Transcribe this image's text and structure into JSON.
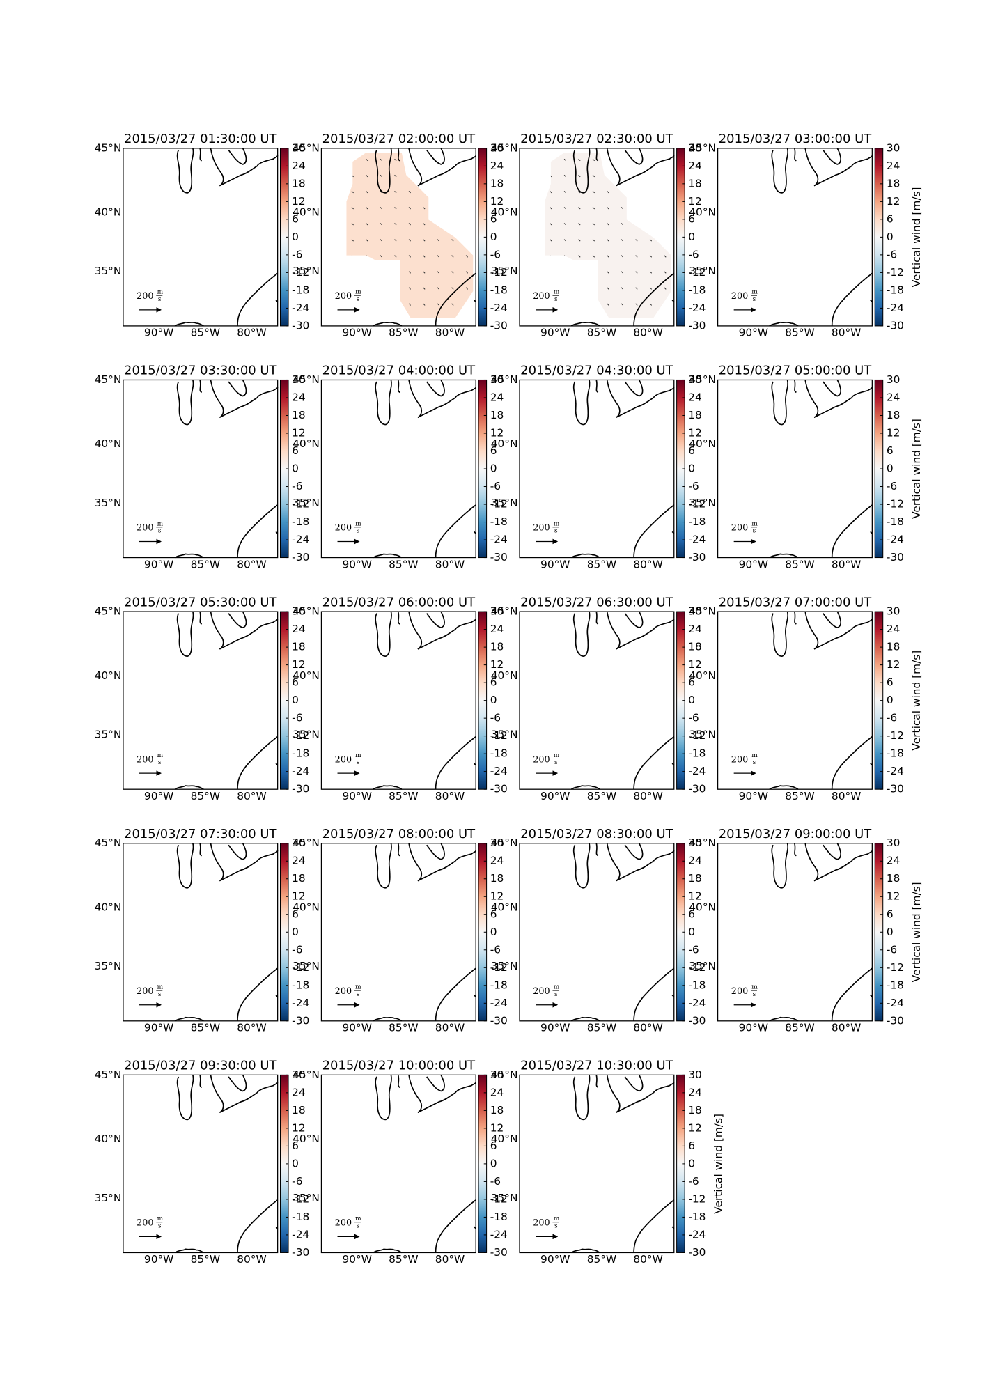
{
  "panels": [
    {
      "title": "2015/03/27 01:30:00 UT"
    },
    {
      "title": "2015/03/27 02:00:00 UT",
      "shaded_value": 5
    },
    {
      "title": "2015/03/27 02:30:00 UT",
      "shaded_value": 1
    },
    {
      "title": "2015/03/27 03:00:00 UT"
    },
    {
      "title": "2015/03/27 03:30:00 UT"
    },
    {
      "title": "2015/03/27 04:00:00 UT"
    },
    {
      "title": "2015/03/27 04:30:00 UT"
    },
    {
      "title": "2015/03/27 05:00:00 UT"
    },
    {
      "title": "2015/03/27 05:30:00 UT"
    },
    {
      "title": "2015/03/27 06:00:00 UT"
    },
    {
      "title": "2015/03/27 06:30:00 UT"
    },
    {
      "title": "2015/03/27 07:00:00 UT"
    },
    {
      "title": "2015/03/27 07:30:00 UT"
    },
    {
      "title": "2015/03/27 08:00:00 UT"
    },
    {
      "title": "2015/03/27 08:30:00 UT"
    },
    {
      "title": "2015/03/27 09:00:00 UT"
    },
    {
      "title": "2015/03/27 09:30:00 UT"
    },
    {
      "title": "2015/03/27 10:00:00 UT"
    },
    {
      "title": "2015/03/27 10:30:00 UT"
    }
  ],
  "colorbar": {
    "lim": [
      -30,
      30
    ],
    "ticks": [
      30,
      24,
      18,
      12,
      6,
      0,
      -6,
      -12,
      -18,
      -24,
      -30
    ],
    "label": "Vertical wind [m/s]"
  },
  "lat_labels": [
    "45°N",
    "40°N",
    "35°N"
  ],
  "lon_labels": [
    "90°W",
    "85°W",
    "80°W"
  ],
  "scale_label": "200",
  "scale_units": [
    "m",
    "s"
  ]
}
